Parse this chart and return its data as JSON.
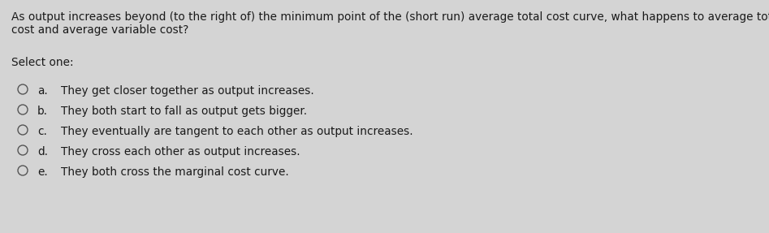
{
  "background_color": "#d4d4d4",
  "question_text_line1": "As output increases beyond (to the right of) the minimum point of the (short run) average total cost curve, what happens to average total",
  "question_text_line2": "cost and average variable cost?",
  "select_label": "Select one:",
  "options": [
    {
      "letter": "a.",
      "text": "They get closer together as output increases."
    },
    {
      "letter": "b.",
      "text": "They both start to fall as output gets bigger."
    },
    {
      "letter": "c.",
      "text": "They eventually are tangent to each other as output increases."
    },
    {
      "letter": "d.",
      "text": "They cross each other as output increases."
    },
    {
      "letter": "e.",
      "text": "They both cross the marginal cost curve."
    }
  ],
  "question_fontsize": 9.8,
  "select_fontsize": 9.8,
  "option_fontsize": 9.8,
  "text_color": "#1a1a1a",
  "circle_edge_color": "#555555",
  "figsize": [
    9.47,
    2.87
  ],
  "dpi": 100
}
